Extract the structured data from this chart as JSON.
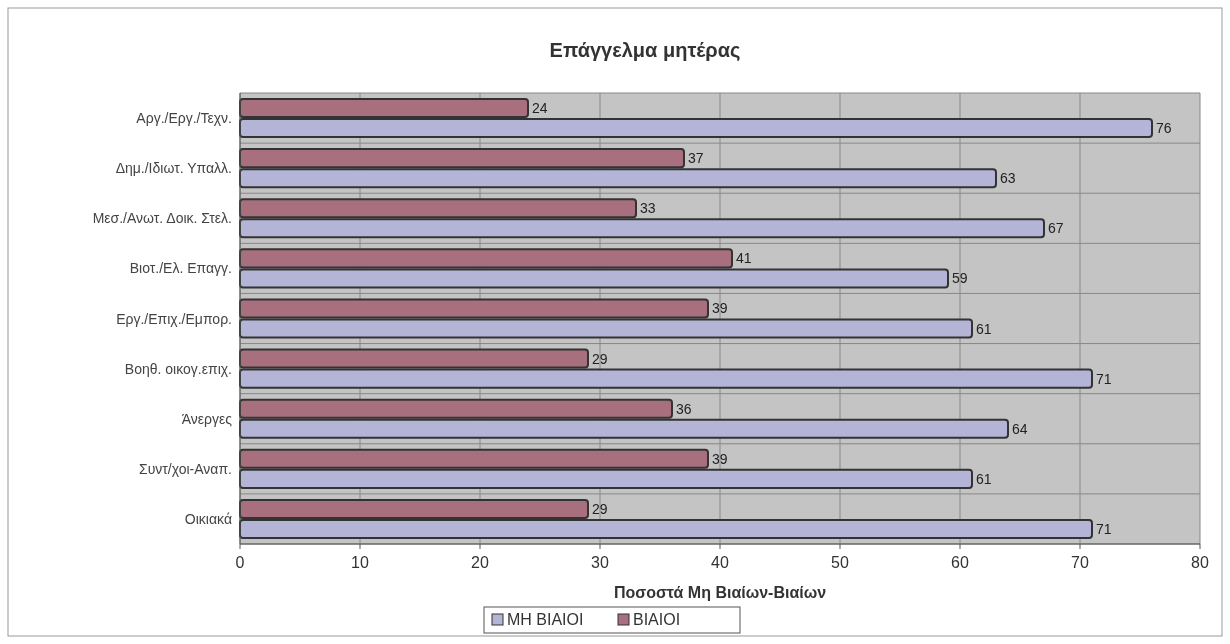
{
  "chart_data": {
    "type": "bar",
    "orientation": "horizontal",
    "title": "Επάγγελμα μητέρας",
    "xlabel": "Ποσοστά Μη Βιαίων-Βιαίων",
    "categories": [
      "Αργ./Εργ./Τεχν.",
      "Δημ./Ιδιωτ. Υπαλλ.",
      "Μεσ./Ανωτ. Δοικ. Στελ.",
      "Βιοτ./Ελ. Επαγγ.",
      "Εργ./Επιχ./Εμπορ.",
      "Βοηθ. οικογ.επιχ.",
      "Άνεργες",
      "Συντ/χοι-Αναπ.",
      "Οικιακά"
    ],
    "series": [
      {
        "name": "ΜΗ ΒΙΑΙΟΙ",
        "color": "#b4b4d6",
        "values": [
          76,
          63,
          67,
          59,
          61,
          71,
          64,
          61,
          71
        ]
      },
      {
        "name": "ΒΙΑΙΟΙ",
        "color": "#a8707e",
        "values": [
          24,
          37,
          33,
          41,
          39,
          29,
          36,
          39,
          29
        ]
      }
    ],
    "xlim": [
      0,
      80
    ],
    "xticks": [
      0,
      10,
      20,
      30,
      40,
      50,
      60,
      70,
      80
    ],
    "grid": true,
    "legend": "bottom",
    "data_labels": true
  }
}
